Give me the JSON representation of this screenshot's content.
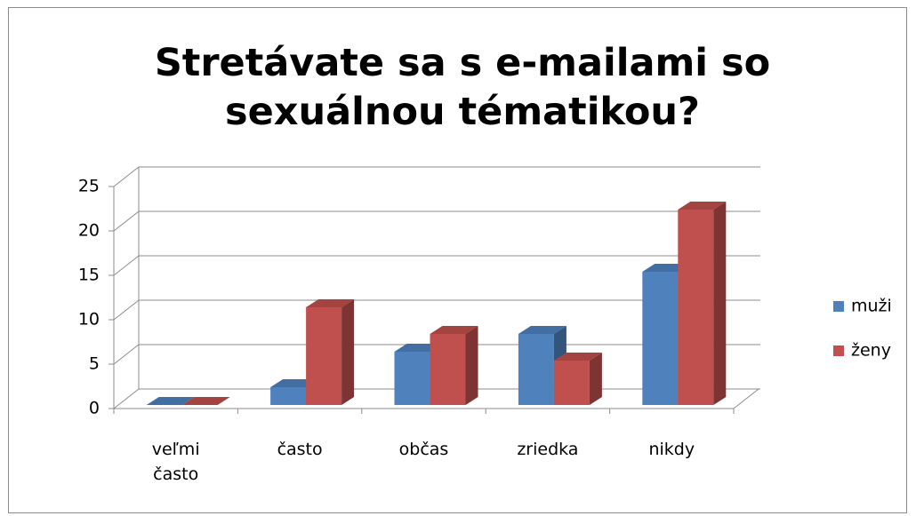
{
  "chart_data": {
    "type": "bar3d",
    "title": "Stretávate sa s e-mailami so sexuálnou tématikou?",
    "categories": [
      "veľmi často",
      "často",
      "občas",
      "zriedka",
      "nikdy"
    ],
    "series": [
      {
        "name": "muži",
        "color": "#4f81bd",
        "values": [
          0,
          2,
          6,
          8,
          15
        ]
      },
      {
        "name": "ženy",
        "color": "#c0504d",
        "values": [
          0,
          11,
          8,
          5,
          22
        ]
      }
    ],
    "ylim": [
      0,
      25
    ],
    "yticks": [
      0,
      5,
      10,
      15,
      20,
      25
    ],
    "grid": true,
    "legend": "right"
  }
}
